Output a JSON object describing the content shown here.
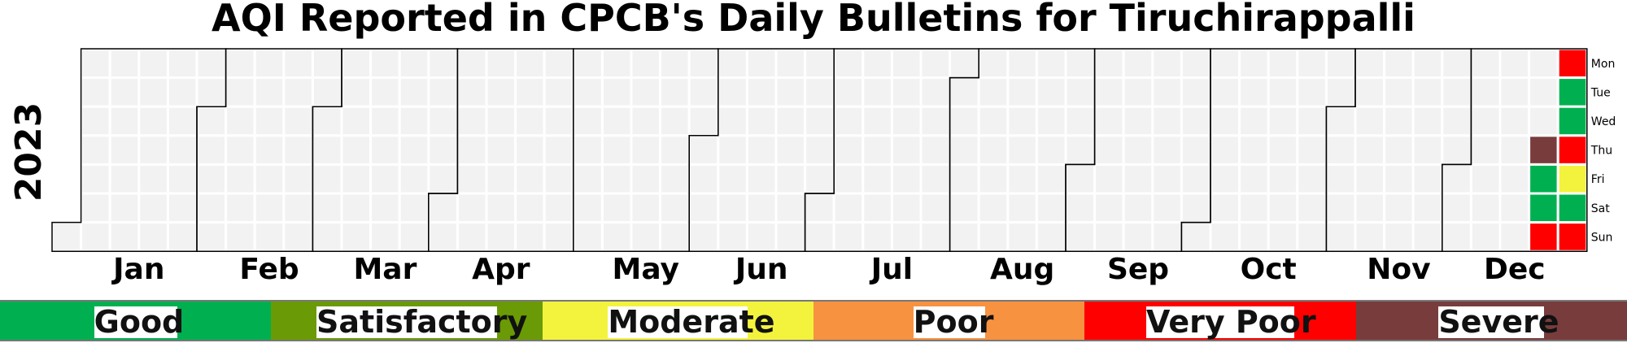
{
  "chart_data": {
    "type": "heatmap",
    "title": "AQI Reported in CPCB's Daily Bulletins for Tiruchirappalli",
    "year_label": "2023",
    "months": [
      "Jan",
      "Feb",
      "Mar",
      "Apr",
      "May",
      "Jun",
      "Jul",
      "Aug",
      "Sep",
      "Oct",
      "Nov",
      "Dec"
    ],
    "weekdays": [
      "Mon",
      "Tue",
      "Wed",
      "Thu",
      "Fri",
      "Sat",
      "Sun"
    ],
    "categories": [
      {
        "name": "Good",
        "color": "#00b050"
      },
      {
        "name": "Satisfactory",
        "color": "#6a9a05"
      },
      {
        "name": "Moderate",
        "color": "#f3f33d"
      },
      {
        "name": "Poor",
        "color": "#f79240"
      },
      {
        "name": "Very Poor",
        "color": "#ff0000"
      },
      {
        "name": "Severe",
        "color": "#783c3c"
      }
    ],
    "no_data_color": "#f2f2f2",
    "values": [
      {
        "date": "2023-12-21",
        "category": "Severe"
      },
      {
        "date": "2023-12-22",
        "category": "Good"
      },
      {
        "date": "2023-12-23",
        "category": "Good"
      },
      {
        "date": "2023-12-24",
        "category": "Very Poor"
      },
      {
        "date": "2023-12-25",
        "category": "Very Poor"
      },
      {
        "date": "2023-12-26",
        "category": "Good"
      },
      {
        "date": "2023-12-27",
        "category": "Good"
      },
      {
        "date": "2023-12-28",
        "category": "Very Poor"
      },
      {
        "date": "2023-12-29",
        "category": "Moderate"
      },
      {
        "date": "2023-12-30",
        "category": "Good"
      },
      {
        "date": "2023-12-31",
        "category": "Very Poor"
      }
    ]
  }
}
